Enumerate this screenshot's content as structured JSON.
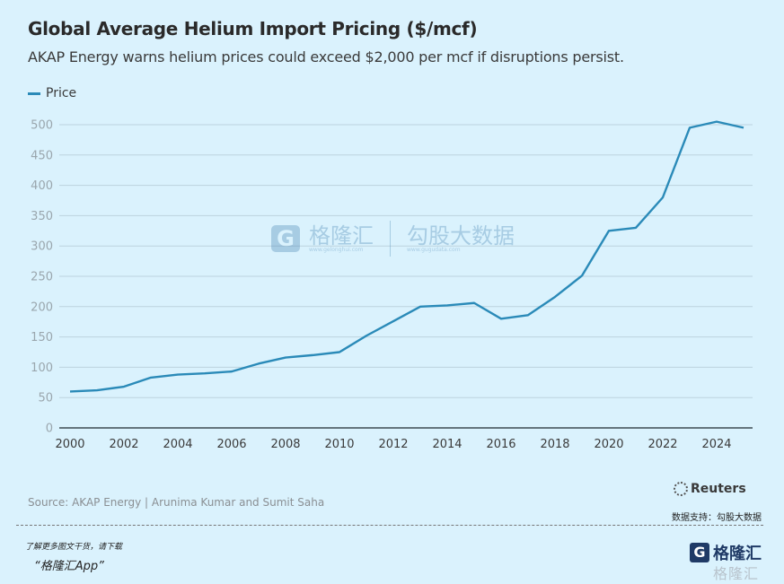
{
  "header": {
    "title": "Global Average Helium Import Pricing ($/mcf)",
    "subtitle": "AKAP Energy warns helium prices could exceed $2,000 per mcf if disruptions persist."
  },
  "legend": {
    "label": "Price",
    "color": "#2a8ab8"
  },
  "watermark": {
    "logo_letter": "G",
    "brand": "格隆汇",
    "brand_url": "www.gelonghui.com",
    "partner": "勾股大数据",
    "partner_url": "www.gugudata.com"
  },
  "footer": {
    "source": "Source: AKAP Energy | Arunima Kumar and Sumit Saha",
    "publisher": "Reuters",
    "data_support": "数据支持：勾股大数据",
    "promo_line1": "了解更多图文干货，请下载",
    "promo_line2": "“格隆汇App”",
    "brand_logo_letter": "G",
    "brand_logo_text": "格隆汇",
    "brand_logo_sub": "格隆汇"
  },
  "chart_data": {
    "type": "line",
    "title": "Global Average Helium Import Pricing ($/mcf)",
    "subtitle": "AKAP Energy warns helium prices could exceed $2,000 per mcf if disruptions persist.",
    "xlabel": "",
    "ylabel": "",
    "x": [
      2000,
      2001,
      2002,
      2003,
      2004,
      2005,
      2006,
      2007,
      2008,
      2009,
      2010,
      2011,
      2012,
      2013,
      2014,
      2015,
      2016,
      2017,
      2018,
      2019,
      2020,
      2021,
      2022,
      2023,
      2024,
      2025
    ],
    "series": [
      {
        "name": "Price",
        "color": "#2a8ab8",
        "values": [
          60,
          62,
          68,
          83,
          88,
          90,
          93,
          106,
          116,
          120,
          125,
          152,
          176,
          200,
          202,
          206,
          180,
          186,
          216,
          251,
          325,
          330,
          380,
          495,
          505,
          495
        ]
      }
    ],
    "xticks": [
      "2000",
      "2002",
      "2004",
      "2006",
      "2008",
      "2010",
      "2012",
      "2014",
      "2016",
      "2018",
      "2020",
      "2022",
      "2024"
    ],
    "yticks": [
      "0",
      "50",
      "100",
      "150",
      "200",
      "250",
      "300",
      "350",
      "400",
      "450",
      "500"
    ],
    "xlim": [
      2000,
      2025.5
    ],
    "ylim": [
      0,
      500
    ],
    "grid": true,
    "legend_position": "top-left"
  }
}
